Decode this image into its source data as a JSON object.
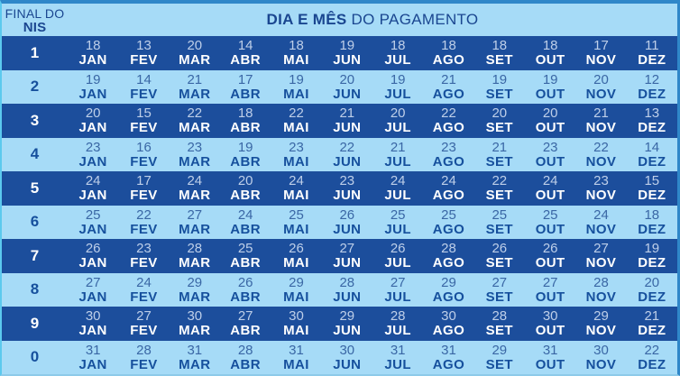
{
  "header": {
    "nis_label_line1": "FINAL DO",
    "nis_label_line2": "NIS",
    "title_bold": "DIA E MÊS",
    "title_regular": " DO PAGAMENTO"
  },
  "chart_data": {
    "type": "table",
    "title": "DIA E MÊS DO PAGAMENTO",
    "row_header": "FINAL DO NIS",
    "columns": [
      "JAN",
      "FEV",
      "MAR",
      "ABR",
      "MAI",
      "JUN",
      "JUL",
      "AGO",
      "SET",
      "OUT",
      "NOV",
      "DEZ"
    ],
    "rows": [
      {
        "nis": "1",
        "days": [
          18,
          13,
          20,
          14,
          18,
          19,
          18,
          18,
          18,
          18,
          17,
          11
        ]
      },
      {
        "nis": "2",
        "days": [
          19,
          14,
          21,
          17,
          19,
          20,
          19,
          21,
          19,
          19,
          20,
          12
        ]
      },
      {
        "nis": "3",
        "days": [
          20,
          15,
          22,
          18,
          22,
          21,
          20,
          22,
          20,
          20,
          21,
          13
        ]
      },
      {
        "nis": "4",
        "days": [
          23,
          16,
          23,
          19,
          23,
          22,
          21,
          23,
          21,
          23,
          22,
          14
        ]
      },
      {
        "nis": "5",
        "days": [
          24,
          17,
          24,
          20,
          24,
          23,
          24,
          24,
          22,
          24,
          23,
          15
        ]
      },
      {
        "nis": "6",
        "days": [
          25,
          22,
          27,
          24,
          25,
          26,
          25,
          25,
          25,
          25,
          24,
          18
        ]
      },
      {
        "nis": "7",
        "days": [
          26,
          23,
          28,
          25,
          26,
          27,
          26,
          28,
          26,
          26,
          27,
          19
        ]
      },
      {
        "nis": "8",
        "days": [
          27,
          24,
          29,
          26,
          29,
          28,
          27,
          29,
          27,
          27,
          28,
          20
        ]
      },
      {
        "nis": "9",
        "days": [
          30,
          27,
          30,
          27,
          30,
          29,
          28,
          30,
          28,
          30,
          29,
          21
        ]
      },
      {
        "nis": "0",
        "days": [
          31,
          28,
          31,
          28,
          31,
          30,
          31,
          31,
          29,
          31,
          30,
          22
        ]
      }
    ]
  },
  "colors": {
    "light_row": "#a6dbf7",
    "dark_row": "#1c4e9c",
    "header_text": "#1a4690",
    "day_on_dark": "#becfe9",
    "month_on_dark": "#ffffff",
    "day_on_light": "#3a67a5",
    "month_on_light": "#16509d",
    "edge_blue": "#2f87c9",
    "edge_cyan": "#5cc9ee",
    "edge_bottom": "#8ecae9"
  }
}
